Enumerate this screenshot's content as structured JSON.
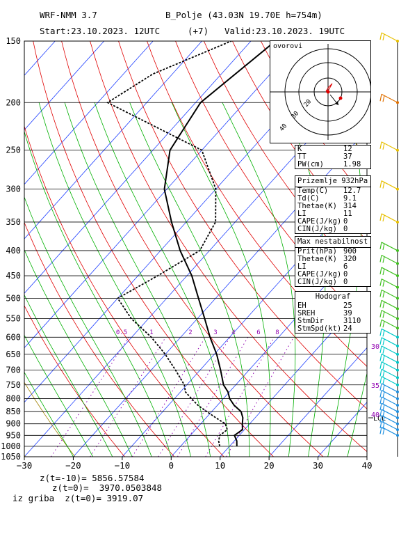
{
  "header": {
    "model": "WRF-NMM 3.7",
    "station": "B_Polje (43.03N 19.70E h=754m)",
    "start": "Start:23.10.2023. 12UTC",
    "offset": "(+7)",
    "valid": "Valid:23.10.2023. 19UTC"
  },
  "chart_data": {
    "type": "line",
    "title": "Skew-T log-P sounding",
    "xlabel": "Temperature (°C)",
    "ylabel": "Pressure (hPa)",
    "xlim": [
      -30,
      40
    ],
    "ylim": [
      1050,
      150
    ],
    "y_scale": "log",
    "x_ticks": [
      "−30",
      "−20",
      "−10",
      "0",
      "10",
      "20",
      "30",
      "40"
    ],
    "x_tick_values": [
      -30,
      -20,
      -10,
      0,
      10,
      20,
      30,
      40
    ],
    "pressure_levels": [
      150,
      200,
      250,
      300,
      350,
      400,
      450,
      500,
      550,
      600,
      650,
      700,
      750,
      800,
      850,
      900,
      950,
      1000,
      1050
    ],
    "mixing_ratio_labels": [
      "0.5",
      "1",
      "2",
      "3",
      "4",
      "6",
      "8"
    ],
    "mixing_ratio_values": [
      0.5,
      1,
      2,
      3,
      4,
      6,
      8
    ],
    "lcl_label": "LCL",
    "lcl_pressure": 875,
    "series": [
      {
        "name": "Temperature",
        "p": [
          1000,
          975,
          950,
          925,
          900,
          875,
          850,
          825,
          800,
          775,
          750,
          700,
          650,
          600,
          550,
          500,
          450,
          400,
          350,
          300,
          250,
          200,
          150
        ],
        "t": [
          11.5,
          10.5,
          9.0,
          9.6,
          8.5,
          7.5,
          6.0,
          3.4,
          1.3,
          -0.3,
          -2.5,
          -5.8,
          -9.5,
          -14.0,
          -18.5,
          -23.5,
          -29.0,
          -36.0,
          -43.0,
          -50.5,
          -56.5,
          -59.0,
          -55.0
        ]
      },
      {
        "name": "Dew point",
        "p": [
          1000,
          975,
          950,
          925,
          900,
          875,
          850,
          825,
          800,
          775,
          750,
          700,
          650,
          600,
          550,
          500,
          450,
          400,
          350,
          300,
          250,
          200,
          175,
          150
        ],
        "t": [
          8.0,
          6.8,
          6.0,
          6.5,
          5.0,
          2.0,
          -1.0,
          -4.0,
          -6.5,
          -9.0,
          -10.5,
          -15.0,
          -20.0,
          -26.0,
          -33.5,
          -40.0,
          -36.0,
          -32.0,
          -34.0,
          -40.0,
          -50.0,
          -78.0,
          -74.0,
          -64.0
        ]
      }
    ],
    "wind_barb_labels": [
      "30",
      "35",
      "40"
    ],
    "wind_barb_label_pressures": [
      625,
      750,
      860
    ]
  },
  "hodograph": {
    "label": "ovorovi",
    "ring_labels": [
      "20",
      "30",
      "40"
    ]
  },
  "indices": {
    "rows": [
      {
        "k": "K",
        "v": "12"
      },
      {
        "k": "TT",
        "v": "37"
      },
      {
        "k": "PW(cm)",
        "v": "1.98"
      }
    ]
  },
  "surface": {
    "title": "Prizemlje 932hPa",
    "rows": [
      {
        "k": "Temp(C)",
        "v": "12.7"
      },
      {
        "k": "Td(C)",
        "v": "9.1"
      },
      {
        "k": "Thetae(K)",
        "v": "314"
      },
      {
        "k": "LI",
        "v": "11"
      },
      {
        "k": "CAPE(J/kg)",
        "v": "0"
      },
      {
        "k": "CIN(J/kg)",
        "v": "0"
      }
    ]
  },
  "max_instability": {
    "title": "Max nestabilnost",
    "rows": [
      {
        "k": "Prit(hPa)",
        "v": "900"
      },
      {
        "k": "Thetae(K)",
        "v": "320"
      },
      {
        "k": "LI",
        "v": "6"
      },
      {
        "k": "CAPE(J/kg)",
        "v": "0"
      },
      {
        "k": "CIN(J/kg)",
        "v": "0"
      }
    ]
  },
  "hodograph_box": {
    "title": "Hodograf",
    "rows": [
      {
        "k": "EH",
        "v": "25"
      },
      {
        "k": "SREH",
        "v": "39"
      },
      {
        "k": "StmDir",
        "v": "3110"
      },
      {
        "k": "StmSpd(kt)",
        "v": "24"
      }
    ]
  },
  "footer": {
    "line1": "z(t=-10)= 5856.57584",
    "line2": "z(t=0)=  3970.0503848",
    "line3": "iz griba  z(t=0)= 3919.07"
  },
  "colors": {
    "temperature": "#000000",
    "isotherm": "#2040ff",
    "dry_adiabat": "#e00000",
    "moist_adiabat": "#00b000",
    "dry_adiabat_warm": "#a08000",
    "mixing_ratio": "#9000b0",
    "barb_high": "#e8c000",
    "barb_orange": "#e07000",
    "barb_green": "#40c020",
    "barb_cyan": "#00c8c8",
    "barb_blue": "#2090e0"
  }
}
